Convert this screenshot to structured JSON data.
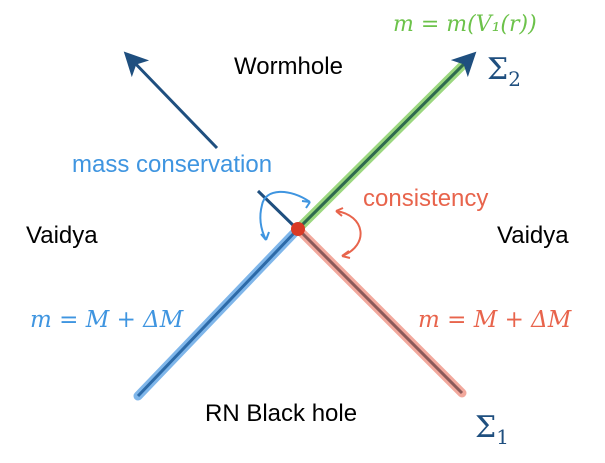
{
  "labels": {
    "wormhole": "Wormhole",
    "vaidya_left": "Vaidya",
    "vaidya_right": "Vaidya",
    "rn_black_hole": "RN Black hole",
    "mass_conservation": "mass conservation",
    "consistency": "consistency",
    "eq_green": "m = m(V₁(r))",
    "eq_blue": "m = M + ΔM",
    "eq_red": "m = M + ΔM",
    "sigma1": "Σ",
    "sigma1_sub": "1",
    "sigma2": "Σ",
    "sigma2_sub": "2"
  },
  "colors": {
    "green": "#6cc24a",
    "blue": "#3f95e0",
    "red": "#e8644c",
    "dark_blue": "#1f4f7f",
    "dot": "#d93a26"
  }
}
